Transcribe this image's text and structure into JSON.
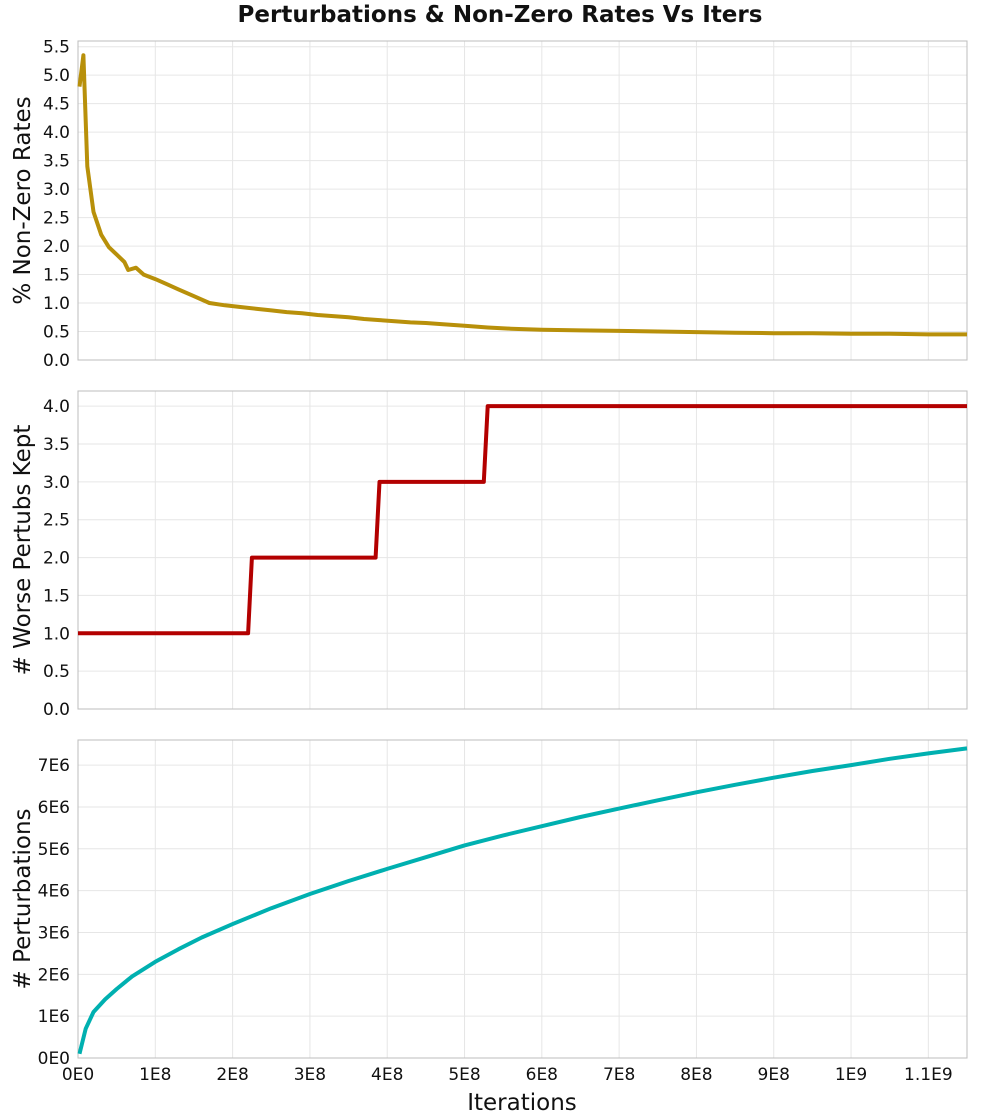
{
  "figure": {
    "title": "Perturbations & Non-Zero Rates Vs Iters",
    "xlabel": "Iterations"
  },
  "chart_data": [
    {
      "type": "line",
      "ylabel": "% Non-Zero Rates",
      "color": "#b8900a",
      "xlim": [
        0,
        1150000000
      ],
      "ylim": [
        0,
        5.6
      ],
      "x_ticks": [
        {
          "v": 0,
          "label": "0E0"
        },
        {
          "v": 100000000,
          "label": "1E8"
        },
        {
          "v": 200000000,
          "label": "2E8"
        },
        {
          "v": 300000000,
          "label": "3E8"
        },
        {
          "v": 400000000,
          "label": "4E8"
        },
        {
          "v": 500000000,
          "label": "5E8"
        },
        {
          "v": 600000000,
          "label": "6E8"
        },
        {
          "v": 700000000,
          "label": "7E8"
        },
        {
          "v": 800000000,
          "label": "8E8"
        },
        {
          "v": 900000000,
          "label": "9E8"
        },
        {
          "v": 1000000000,
          "label": "1E9"
        },
        {
          "v": 1100000000,
          "label": "1.1E9"
        }
      ],
      "show_x_tick_labels": false,
      "y_ticks": [
        {
          "v": 0,
          "label": "0.0"
        },
        {
          "v": 0.5,
          "label": "0.5"
        },
        {
          "v": 1.0,
          "label": "1.0"
        },
        {
          "v": 1.5,
          "label": "1.5"
        },
        {
          "v": 2.0,
          "label": "2.0"
        },
        {
          "v": 2.5,
          "label": "2.5"
        },
        {
          "v": 3.0,
          "label": "3.0"
        },
        {
          "v": 3.5,
          "label": "3.5"
        },
        {
          "v": 4.0,
          "label": "4.0"
        },
        {
          "v": 4.5,
          "label": "4.5"
        },
        {
          "v": 5.0,
          "label": "5.0"
        },
        {
          "v": 5.5,
          "label": "5.5"
        }
      ],
      "grid": true,
      "x": [
        2000000,
        7000000,
        12000000,
        20000000,
        30000000,
        40000000,
        50000000,
        60000000,
        65000000,
        75000000,
        85000000,
        100000000,
        115000000,
        130000000,
        150000000,
        170000000,
        190000000,
        210000000,
        230000000,
        250000000,
        270000000,
        290000000,
        310000000,
        330000000,
        350000000,
        370000000,
        390000000,
        410000000,
        430000000,
        450000000,
        470000000,
        500000000,
        530000000,
        560000000,
        600000000,
        650000000,
        700000000,
        750000000,
        800000000,
        850000000,
        900000000,
        950000000,
        1000000000,
        1050000000,
        1100000000,
        1150000000
      ],
      "y": [
        4.8,
        5.35,
        3.4,
        2.6,
        2.2,
        1.98,
        1.85,
        1.72,
        1.58,
        1.62,
        1.5,
        1.42,
        1.33,
        1.24,
        1.12,
        1.0,
        0.96,
        0.93,
        0.9,
        0.87,
        0.84,
        0.82,
        0.79,
        0.77,
        0.75,
        0.72,
        0.7,
        0.68,
        0.66,
        0.65,
        0.63,
        0.6,
        0.57,
        0.55,
        0.53,
        0.52,
        0.51,
        0.5,
        0.49,
        0.48,
        0.47,
        0.47,
        0.46,
        0.46,
        0.45,
        0.45
      ]
    },
    {
      "type": "line",
      "ylabel": "# Worse Pertubs Kept",
      "color": "#b30000",
      "xlim": [
        0,
        1150000000
      ],
      "ylim": [
        0,
        4.2
      ],
      "show_x_tick_labels": false,
      "y_ticks": [
        {
          "v": 0,
          "label": "0.0"
        },
        {
          "v": 0.5,
          "label": "0.5"
        },
        {
          "v": 1.0,
          "label": "1.0"
        },
        {
          "v": 1.5,
          "label": "1.5"
        },
        {
          "v": 2.0,
          "label": "2.0"
        },
        {
          "v": 2.5,
          "label": "2.5"
        },
        {
          "v": 3.0,
          "label": "3.0"
        },
        {
          "v": 3.5,
          "label": "3.5"
        },
        {
          "v": 4.0,
          "label": "4.0"
        }
      ],
      "grid": true,
      "x": [
        0,
        220000000,
        225000000,
        385000000,
        390000000,
        525000000,
        530000000,
        1150000000
      ],
      "y": [
        1,
        1,
        2,
        2,
        3,
        3,
        4,
        4
      ]
    },
    {
      "type": "line",
      "ylabel": "# Perturbations",
      "color": "#00b0b0",
      "xlim": [
        0,
        1150000000
      ],
      "ylim": [
        0,
        7600000
      ],
      "show_x_tick_labels": true,
      "y_ticks": [
        {
          "v": 0,
          "label": "0E0"
        },
        {
          "v": 1000000,
          "label": "1E6"
        },
        {
          "v": 2000000,
          "label": "2E6"
        },
        {
          "v": 3000000,
          "label": "3E6"
        },
        {
          "v": 4000000,
          "label": "4E6"
        },
        {
          "v": 5000000,
          "label": "5E6"
        },
        {
          "v": 6000000,
          "label": "6E6"
        },
        {
          "v": 7000000,
          "label": "7E6"
        }
      ],
      "grid": true,
      "x": [
        2000000,
        10000000,
        20000000,
        35000000,
        50000000,
        70000000,
        100000000,
        130000000,
        160000000,
        200000000,
        250000000,
        300000000,
        350000000,
        400000000,
        450000000,
        500000000,
        550000000,
        600000000,
        650000000,
        700000000,
        750000000,
        800000000,
        850000000,
        900000000,
        950000000,
        1000000000,
        1050000000,
        1100000000,
        1150000000
      ],
      "y": [
        100000,
        700000,
        1100000,
        1400000,
        1650000,
        1950000,
        2300000,
        2600000,
        2880000,
        3200000,
        3580000,
        3920000,
        4230000,
        4520000,
        4800000,
        5080000,
        5320000,
        5540000,
        5760000,
        5960000,
        6160000,
        6350000,
        6530000,
        6700000,
        6860000,
        7000000,
        7150000,
        7280000,
        7400000
      ]
    }
  ]
}
